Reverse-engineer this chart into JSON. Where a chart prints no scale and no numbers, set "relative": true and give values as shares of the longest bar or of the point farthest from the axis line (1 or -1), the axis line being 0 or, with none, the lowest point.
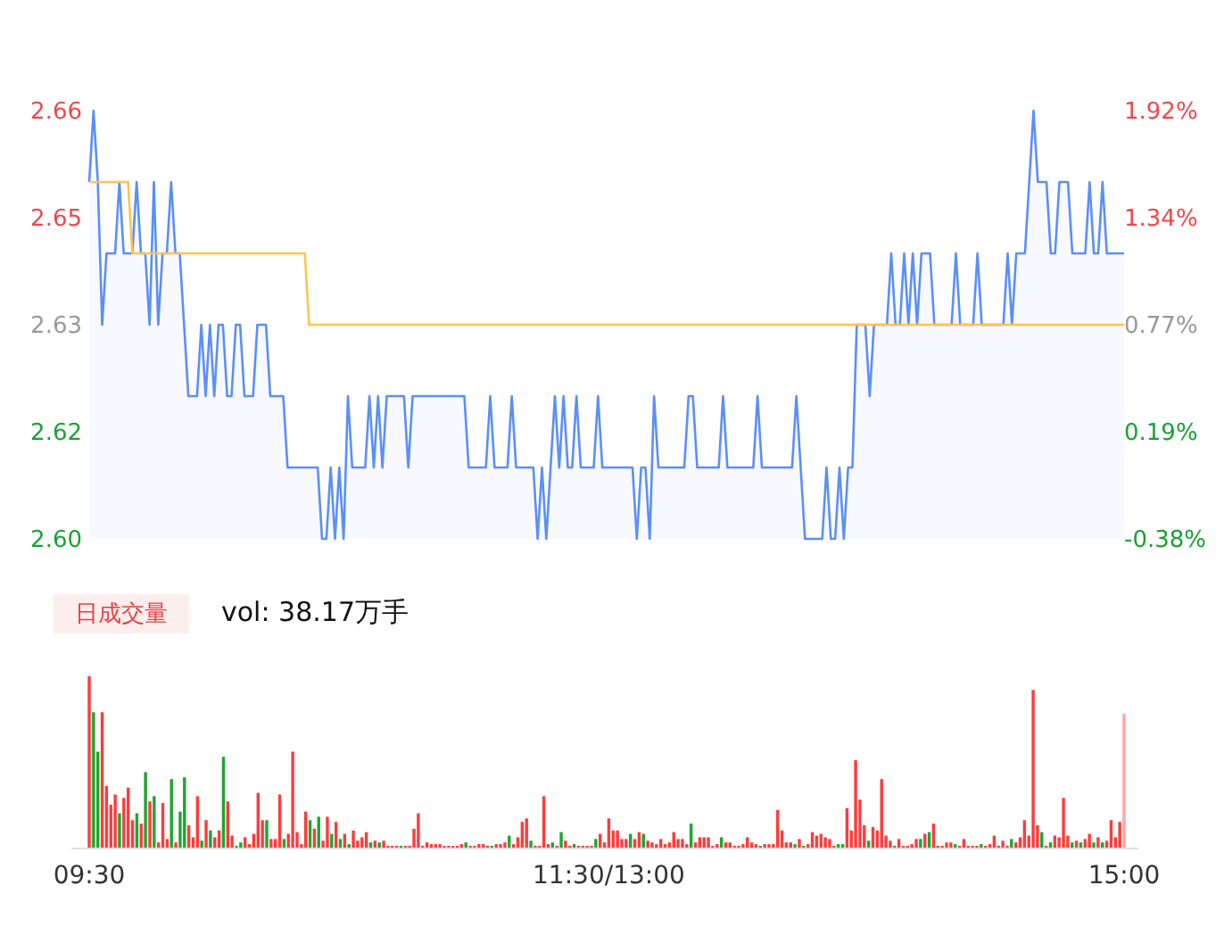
{
  "chart_data": [
    {
      "type": "line",
      "tick_labels": "y",
      "categories": [
        null,
        null,
        null,
        null,
        null,
        null,
        null,
        null,
        null,
        null,
        null,
        null,
        null,
        null,
        null,
        null,
        null,
        null,
        null,
        null,
        null,
        null,
        null,
        null,
        null,
        null,
        null,
        null,
        null,
        null,
        null,
        null,
        null,
        null,
        null,
        null,
        null,
        null,
        null,
        null,
        null,
        null,
        null,
        null,
        null,
        null,
        null,
        null,
        null,
        null,
        null,
        null,
        null,
        null,
        null,
        null,
        null,
        null,
        null,
        null,
        null,
        null,
        null,
        null,
        null,
        null,
        null,
        null,
        null,
        null,
        null,
        null,
        null,
        null,
        null,
        null,
        null,
        null,
        null,
        null,
        null,
        null,
        null,
        null,
        null,
        null,
        null,
        null,
        null,
        null,
        null,
        null,
        null,
        null,
        null,
        null,
        null,
        null,
        null,
        null,
        null,
        null,
        null,
        null,
        null,
        null,
        null,
        null,
        null,
        null,
        null,
        null,
        null,
        null,
        null,
        null,
        null,
        null,
        null,
        null,
        null,
        null,
        null,
        null,
        null,
        null,
        null,
        null,
        null,
        null,
        null,
        null,
        null,
        null,
        null,
        null,
        null,
        null,
        null,
        null,
        null,
        null,
        null,
        null,
        null,
        null,
        null,
        null,
        null,
        null,
        null,
        null,
        null,
        null,
        null,
        null,
        null,
        null,
        null,
        null,
        null,
        null,
        null,
        null,
        null,
        null,
        null,
        null,
        null,
        null,
        null,
        null,
        null,
        null,
        null,
        null,
        null,
        null,
        null,
        null,
        null,
        null,
        null,
        null,
        null,
        null,
        null,
        null,
        null,
        null,
        null,
        null,
        null,
        null,
        null,
        null,
        null,
        null,
        null,
        null,
        null,
        null,
        null,
        null,
        null,
        null,
        null,
        null,
        null,
        null,
        null,
        null,
        null,
        null,
        null,
        null,
        null,
        null,
        null,
        null,
        null,
        null,
        null,
        null,
        null,
        null,
        null,
        null,
        null,
        null,
        null,
        null,
        null,
        null,
        null,
        null,
        null,
        null,
        null,
        null,
        null
      ],
      "ylim": [
        2.6,
        2.66
      ],
      "yticks": [
        {
          "value": 2.6,
          "label": "2.60"
        },
        {
          "value": 2.615,
          "label": "2.62"
        },
        2.63,
        {
          "value": 2.645,
          "label": "2.65"
        },
        2.66
      ],
      "y2lim": [
        -0.38,
        1.92
      ],
      "y2ticks": [
        {
          "value": -0.38,
          "label": "-0.38%"
        },
        {
          "value": 0.195,
          "label": "0.19%"
        },
        {
          "value": 0.77,
          "label": "0.77%"
        },
        {
          "value": 1.345,
          "label": "1.34%"
        },
        {
          "value": 1.92,
          "label": "1.92%"
        }
      ],
      "series": [
        {
          "type": "area",
          "color": "#5b8ff9",
          "values": [
            2.65,
            2.66,
            2.65,
            2.63,
            2.64,
            2.64,
            2.64,
            2.65,
            2.64,
            2.64,
            2.64,
            2.65,
            2.64,
            2.64,
            2.63,
            2.65,
            2.63,
            2.64,
            2.64,
            2.65,
            2.64,
            2.64,
            2.63,
            2.62,
            2.62,
            2.62,
            2.63,
            2.62,
            2.63,
            2.62,
            2.63,
            2.63,
            2.62,
            2.62,
            2.63,
            2.63,
            2.62,
            2.62,
            2.62,
            2.63,
            2.63,
            2.63,
            2.62,
            2.62,
            2.62,
            2.62,
            2.61,
            2.61,
            2.61,
            2.61,
            2.61,
            2.61,
            2.61,
            2.61,
            2.6,
            2.6,
            2.61,
            2.6,
            2.61,
            2.6,
            2.62,
            2.61,
            2.61,
            2.61,
            2.61,
            2.62,
            2.61,
            2.62,
            2.61,
            2.62,
            2.62,
            2.62,
            2.62,
            2.62,
            2.61,
            2.62,
            2.62,
            2.62,
            2.62,
            2.62,
            2.62,
            2.62,
            2.62,
            2.62,
            2.62,
            2.62,
            2.62,
            2.62,
            2.61,
            2.61,
            2.61,
            2.61,
            2.61,
            2.62,
            2.61,
            2.61,
            2.61,
            2.61,
            2.62,
            2.61,
            2.61,
            2.61,
            2.61,
            2.61,
            2.6,
            2.61,
            2.6,
            2.61,
            2.62,
            2.61,
            2.62,
            2.61,
            2.61,
            2.62,
            2.61,
            2.61,
            2.61,
            2.61,
            2.62,
            2.61,
            2.61,
            2.61,
            2.61,
            2.61,
            2.61,
            2.61,
            2.61,
            2.6,
            2.61,
            2.61,
            2.6,
            2.62,
            2.61,
            2.61,
            2.61,
            2.61,
            2.61,
            2.61,
            2.61,
            2.62,
            2.62,
            2.61,
            2.61,
            2.61,
            2.61,
            2.61,
            2.61,
            2.62,
            2.61,
            2.61,
            2.61,
            2.61,
            2.61,
            2.61,
            2.61,
            2.62,
            2.61,
            2.61,
            2.61,
            2.61,
            2.61,
            2.61,
            2.61,
            2.61,
            2.62,
            2.61,
            2.6,
            2.6,
            2.6,
            2.6,
            2.6,
            2.61,
            2.6,
            2.6,
            2.61,
            2.6,
            2.61,
            2.61,
            2.63,
            2.63,
            2.63,
            2.62,
            2.63,
            2.63,
            2.63,
            2.63,
            2.64,
            2.63,
            2.63,
            2.64,
            2.63,
            2.64,
            2.63,
            2.64,
            2.64,
            2.64,
            2.63,
            2.63,
            2.63,
            2.63,
            2.63,
            2.64,
            2.63,
            2.63,
            2.63,
            2.63,
            2.64,
            2.63,
            2.63,
            2.63,
            2.63,
            2.63,
            2.63,
            2.64,
            2.63,
            2.64,
            2.64,
            2.64,
            2.65,
            2.66,
            2.65,
            2.65,
            2.65,
            2.64,
            2.64,
            2.65,
            2.65,
            2.65,
            2.64,
            2.64,
            2.64,
            2.64,
            2.65,
            2.64,
            2.64,
            2.65,
            2.64,
            2.64,
            2.64,
            2.64,
            2.64
          ]
        },
        {
          "type": "line",
          "color": "#ffc44d",
          "values": [
            2.65,
            2.65,
            2.65,
            2.65,
            2.65,
            2.65,
            2.65,
            2.65,
            2.65,
            2.65,
            2.64,
            2.64,
            2.64,
            2.64,
            2.64,
            2.64,
            2.64,
            2.64,
            2.64,
            2.64,
            2.64,
            2.64,
            2.64,
            2.64,
            2.64,
            2.64,
            2.64,
            2.64,
            2.64,
            2.64,
            2.64,
            2.64,
            2.64,
            2.64,
            2.64,
            2.64,
            2.64,
            2.64,
            2.64,
            2.64,
            2.64,
            2.64,
            2.64,
            2.64,
            2.64,
            2.64,
            2.64,
            2.64,
            2.64,
            2.64,
            2.64,
            2.63,
            2.63,
            2.63,
            2.63,
            2.63,
            2.63,
            2.63,
            2.63,
            2.63,
            2.63,
            2.63,
            2.63,
            2.63,
            2.63,
            2.63,
            2.63,
            2.63,
            2.63,
            2.63,
            2.63,
            2.63,
            2.63,
            2.63,
            2.63,
            2.63,
            2.63,
            2.63,
            2.63,
            2.63,
            2.63,
            2.63,
            2.63,
            2.63,
            2.63,
            2.63,
            2.63,
            2.63,
            2.63,
            2.63,
            2.63,
            2.63,
            2.63,
            2.63,
            2.63,
            2.63,
            2.63,
            2.63,
            2.63,
            2.63,
            2.63,
            2.63,
            2.63,
            2.63,
            2.63,
            2.63,
            2.63,
            2.63,
            2.63,
            2.63,
            2.63,
            2.63,
            2.63,
            2.63,
            2.63,
            2.63,
            2.63,
            2.63,
            2.63,
            2.63,
            2.63,
            2.63,
            2.63,
            2.63,
            2.63,
            2.63,
            2.63,
            2.63,
            2.63,
            2.63,
            2.63,
            2.63,
            2.63,
            2.63,
            2.63,
            2.63,
            2.63,
            2.63,
            2.63,
            2.63,
            2.63,
            2.63,
            2.63,
            2.63,
            2.63,
            2.63,
            2.63,
            2.63,
            2.63,
            2.63,
            2.63,
            2.63,
            2.63,
            2.63,
            2.63,
            2.63,
            2.63,
            2.63,
            2.63,
            2.63,
            2.63,
            2.63,
            2.63,
            2.63,
            2.63,
            2.63,
            2.63,
            2.63,
            2.63,
            2.63,
            2.63,
            2.63,
            2.63,
            2.63,
            2.63,
            2.63,
            2.63,
            2.63,
            2.63,
            2.63,
            2.63,
            2.63,
            2.63,
            2.63,
            2.63,
            2.63,
            2.63,
            2.63,
            2.63,
            2.63,
            2.63,
            2.63,
            2.63,
            2.63,
            2.63,
            2.63,
            2.63,
            2.63,
            2.63,
            2.63,
            2.63,
            2.63,
            2.63,
            2.63,
            2.63,
            2.63,
            2.63,
            2.63,
            2.63,
            2.63,
            2.63,
            2.63,
            2.63,
            2.63,
            2.63,
            2.63,
            2.63,
            2.63,
            2.63,
            2.63,
            2.63,
            2.63,
            2.63,
            2.63,
            2.63,
            2.63,
            2.63,
            2.63,
            2.63,
            2.63,
            2.63,
            2.63,
            2.63,
            2.63,
            2.63,
            2.63,
            2.63,
            2.63,
            2.63,
            2.63,
            2.63
          ]
        }
      ]
    },
    {
      "type": "bar",
      "relative": true,
      "annotations": [
        "日成交量",
        "vol: 38.17万手"
      ],
      "categories": [
        "09:30",
        null,
        null,
        null,
        null,
        null,
        null,
        null,
        null,
        null,
        null,
        null,
        null,
        null,
        null,
        null,
        null,
        null,
        null,
        null,
        null,
        null,
        null,
        null,
        null,
        null,
        null,
        null,
        null,
        null,
        null,
        null,
        null,
        null,
        null,
        null,
        null,
        null,
        null,
        null,
        null,
        null,
        null,
        null,
        null,
        null,
        null,
        null,
        null,
        null,
        null,
        null,
        null,
        null,
        null,
        null,
        null,
        null,
        null,
        null,
        null,
        null,
        null,
        null,
        null,
        null,
        null,
        null,
        null,
        null,
        null,
        null,
        null,
        null,
        null,
        null,
        null,
        null,
        null,
        null,
        null,
        null,
        null,
        null,
        null,
        null,
        null,
        null,
        null,
        null,
        null,
        null,
        null,
        null,
        null,
        null,
        null,
        null,
        null,
        null,
        null,
        null,
        null,
        null,
        null,
        null,
        null,
        null,
        null,
        null,
        null,
        null,
        null,
        null,
        null,
        null,
        null,
        null,
        null,
        null,
        "11:30/13:00",
        null,
        null,
        null,
        null,
        null,
        null,
        null,
        null,
        null,
        null,
        null,
        null,
        null,
        null,
        null,
        null,
        null,
        null,
        null,
        null,
        null,
        null,
        null,
        null,
        null,
        null,
        null,
        null,
        null,
        null,
        null,
        null,
        null,
        null,
        null,
        null,
        null,
        null,
        null,
        null,
        null,
        null,
        null,
        null,
        null,
        null,
        null,
        null,
        null,
        null,
        null,
        null,
        null,
        null,
        null,
        null,
        null,
        null,
        null,
        null,
        null,
        null,
        null,
        null,
        null,
        null,
        null,
        null,
        null,
        null,
        null,
        null,
        null,
        null,
        null,
        null,
        null,
        null,
        null,
        null,
        null,
        null,
        null,
        null,
        null,
        null,
        null,
        null,
        null,
        null,
        null,
        null,
        null,
        null,
        null,
        null,
        null,
        null,
        null,
        null,
        null,
        null,
        null,
        null,
        null,
        null,
        null,
        null,
        null,
        null,
        null,
        null,
        null,
        null,
        null,
        null,
        null,
        null,
        "15:00"
      ],
      "values": [
        1.0,
        0.79,
        0.56,
        0.79,
        0.36,
        0.25,
        0.31,
        0.2,
        0.29,
        0.35,
        0.16,
        0.2,
        0.14,
        0.44,
        0.27,
        0.3,
        0.03,
        0.26,
        0.05,
        0.4,
        0.03,
        0.21,
        0.41,
        0.13,
        0.06,
        0.3,
        0.04,
        0.16,
        0.1,
        0.06,
        0.1,
        0.53,
        0.27,
        0.07,
        0.01,
        0.03,
        0.06,
        0.02,
        0.08,
        0.32,
        0.16,
        0.16,
        0.05,
        0.05,
        0.31,
        0.05,
        0.08,
        0.56,
        0.09,
        0.02,
        0.21,
        0.16,
        0.11,
        0.18,
        0.04,
        0.18,
        0.08,
        0.15,
        0.05,
        0.08,
        0.02,
        0.1,
        0.04,
        0.06,
        0.09,
        0.03,
        0.04,
        0.03,
        0.04,
        0.01,
        0.01,
        0.01,
        0.01,
        0.01,
        0.01,
        0.11,
        0.2,
        0.01,
        0.03,
        0.02,
        0.02,
        0.02,
        0.01,
        0.01,
        0.01,
        0.01,
        0.02,
        0.03,
        0.01,
        0.01,
        0.02,
        0.02,
        0.01,
        0.01,
        0.02,
        0.02,
        0.03,
        0.07,
        0.02,
        0.06,
        0.15,
        0.17,
        0.04,
        0.01,
        0.01,
        0.3,
        0.02,
        0.03,
        0.01,
        0.09,
        0.04,
        0.01,
        0.02,
        0.01,
        0.01,
        0.01,
        0.01,
        0.05,
        0.08,
        0.03,
        0.17,
        0.1,
        0.1,
        0.05,
        0.05,
        0.08,
        0.05,
        0.09,
        0.08,
        0.04,
        0.03,
        0.02,
        0.05,
        0.02,
        0.03,
        0.09,
        0.05,
        0.05,
        0.02,
        0.14,
        0.03,
        0.06,
        0.06,
        0.06,
        0.01,
        0.02,
        0.06,
        0.03,
        0.03,
        0.01,
        0.01,
        0.02,
        0.06,
        0.03,
        0.02,
        0.01,
        0.02,
        0.02,
        0.02,
        0.22,
        0.1,
        0.03,
        0.03,
        0.02,
        0.05,
        0.01,
        0.02,
        0.09,
        0.07,
        0.08,
        0.06,
        0.05,
        0.01,
        0.02,
        0.02,
        0.23,
        0.1,
        0.51,
        0.28,
        0.13,
        0.04,
        0.12,
        0.1,
        0.4,
        0.07,
        0.04,
        0.01,
        0.05,
        0.01,
        0.01,
        0.02,
        0.05,
        0.05,
        0.08,
        0.09,
        0.14,
        0.01,
        0.01,
        0.03,
        0.03,
        0.02,
        0.01,
        0.05,
        0.01,
        0.01,
        0.01,
        0.02,
        0.01,
        0.02,
        0.07,
        0.01,
        0.04,
        0.01,
        0.05,
        0.03,
        0.06,
        0.16,
        0.07,
        0.92,
        0.13,
        0.09,
        0.01,
        0.03,
        0.07,
        0.06,
        0.29,
        0.07,
        0.03,
        0.04,
        0.03,
        0.05,
        0.08,
        0.03,
        0.06,
        0.03,
        0.04,
        0.16,
        0.06,
        0.15,
        0.78
      ],
      "colors": [
        "#ff3b3b",
        "#1fa52e",
        "#1fa52e",
        "#ff3b3b",
        "#ff3b3b",
        "#ff3b3b",
        "#ff3b3b",
        "#1fa52e",
        "#ff3b3b",
        "#ff3b3b",
        "#ff3b3b",
        "#1fa52e",
        "#ff3b3b",
        "#1fa52e",
        "#ff3b3b",
        "#1fa52e",
        "#ff3b3b",
        "#ff3b3b",
        "#ff3b3b",
        "#1fa52e",
        "#ff3b3b",
        "#1fa52e",
        "#1fa52e",
        "#ff3b3b",
        "#ff3b3b",
        "#ff3b3b",
        "#1fa52e",
        "#ff3b3b",
        "#1fa52e",
        "#ff3b3b",
        "#ff3b3b",
        "#1fa52e",
        "#ff3b3b",
        "#ff3b3b",
        "#1fa52e",
        "#1fa52e",
        "#ff3b3b",
        "#ff3b3b",
        "#ff3b3b",
        "#ff3b3b",
        "#ff3b3b",
        "#1fa52e",
        "#ff3b3b",
        "#ff3b3b",
        "#ff3b3b",
        "#1fa52e",
        "#ff3b3b",
        "#ff3b3b",
        "#ff3b3b",
        "#ff3b3b",
        "#ff3b3b",
        "#1fa52e",
        "#ff3b3b",
        "#1fa52e",
        "#ff3b3b",
        "#ff3b3b",
        "#1fa52e",
        "#ff3b3b",
        "#1fa52e",
        "#ff3b3b",
        "#1fa52e",
        "#ff3b3b",
        "#ff3b3b",
        "#ff3b3b",
        "#ff3b3b",
        "#1fa52e",
        "#ff3b3b",
        "#1fa52e",
        "#ff3b3b",
        "#ff3b3b",
        "#ff3b3b",
        "#ff3b3b",
        "#1fa52e",
        "#ff3b3b",
        "#ff3b3b",
        "#ff3b3b",
        "#ff3b3b",
        "#ff3b3b",
        "#ff3b3b",
        "#ff3b3b",
        "#ff3b3b",
        "#ff3b3b",
        "#ff3b3b",
        "#ff3b3b",
        "#ff3b3b",
        "#ff3b3b",
        "#ff3b3b",
        "#1fa52e",
        "#ff3b3b",
        "#ff3b3b",
        "#ff3b3b",
        "#ff3b3b",
        "#ff3b3b",
        "#1fa52e",
        "#ff3b3b",
        "#ff3b3b",
        "#ff3b3b",
        "#1fa52e",
        "#ff3b3b",
        "#ff3b3b",
        "#ff3b3b",
        "#ff3b3b",
        "#1fa52e",
        "#ff3b3b",
        "#ff3b3b",
        "#ff3b3b",
        "#ff3b3b",
        "#1fa52e",
        "#ff3b3b",
        "#1fa52e",
        "#ff3b3b",
        "#ff3b3b",
        "#1fa52e",
        "#ff3b3b",
        "#ff3b3b",
        "#ff3b3b",
        "#ff3b3b",
        "#1fa52e",
        "#ff3b3b",
        "#ff3b3b",
        "#ff3b3b",
        "#ff3b3b",
        "#ff3b3b",
        "#ff3b3b",
        "#ff3b3b",
        "#1fa52e",
        "#ff3b3b",
        "#ff3b3b",
        "#1fa52e",
        "#ff3b3b",
        "#ff3b3b",
        "#ff3b3b",
        "#ff3b3b",
        "#ff3b3b",
        "#ff3b3b",
        "#ff3b3b",
        "#ff3b3b",
        "#ff3b3b",
        "#ff3b3b",
        "#1fa52e",
        "#ff3b3b",
        "#ff3b3b",
        "#ff3b3b",
        "#ff3b3b",
        "#ff3b3b",
        "#ff3b3b",
        "#1fa52e",
        "#ff3b3b",
        "#ff3b3b",
        "#ff3b3b",
        "#ff3b3b",
        "#ff3b3b",
        "#ff3b3b",
        "#ff3b3b",
        "#ff3b3b",
        "#1fa52e",
        "#ff3b3b",
        "#ff3b3b",
        "#ff3b3b",
        "#ff3b3b",
        "#ff3b3b",
        "#ff3b3b",
        "#ff3b3b",
        "#1fa52e",
        "#ff3b3b",
        "#1fa52e",
        "#ff3b3b",
        "#ff3b3b",
        "#ff3b3b",
        "#ff3b3b",
        "#ff3b3b",
        "#ff3b3b",
        "#ff3b3b",
        "#1fa52e",
        "#1fa52e",
        "#ff3b3b",
        "#ff3b3b",
        "#ff3b3b",
        "#ff3b3b",
        "#ff3b3b",
        "#1fa52e",
        "#ff3b3b",
        "#ff3b3b",
        "#ff3b3b",
        "#ff3b3b",
        "#ff3b3b",
        "#1fa52e",
        "#ff3b3b",
        "#ff3b3b",
        "#ff3b3b",
        "#ff3b3b",
        "#ff3b3b",
        "#1fa52e",
        "#ff3b3b",
        "#1fa52e",
        "#ff3b3b",
        "#ff3b3b",
        "#ff3b3b",
        "#ff3b3b",
        "#ff3b3b",
        "#1fa52e",
        "#ff3b3b",
        "#ff3b3b",
        "#ff3b3b",
        "#ff3b3b",
        "#ff3b3b",
        "#1fa52e",
        "#ff3b3b",
        "#ff3b3b",
        "#ff3b3b",
        "#ff3b3b",
        "#ff3b3b",
        "#ff3b3b",
        "#1fa52e",
        "#ff3b3b",
        "#ff3b3b",
        "#ff3b3b",
        "#ff3b3b",
        "#ff3b3b",
        "#ff3b3b",
        "#1fa52e",
        "#ff3b3b",
        "#1fa52e",
        "#ff3b3b",
        "#ff3b3b",
        "#ff3b3b",
        "#ff3b3b",
        "#1fa52e",
        "#ff3b3b",
        "#1fa52e",
        "#ff3b3b",
        "#ff3b3b",
        "#1fa52e",
        "#ff3b3b",
        "#1fa52e",
        "#ff3b3b",
        "#ff3b3b",
        "#ff3b3b",
        "#ff3b3b",
        "#ffa3a3"
      ]
    }
  ]
}
